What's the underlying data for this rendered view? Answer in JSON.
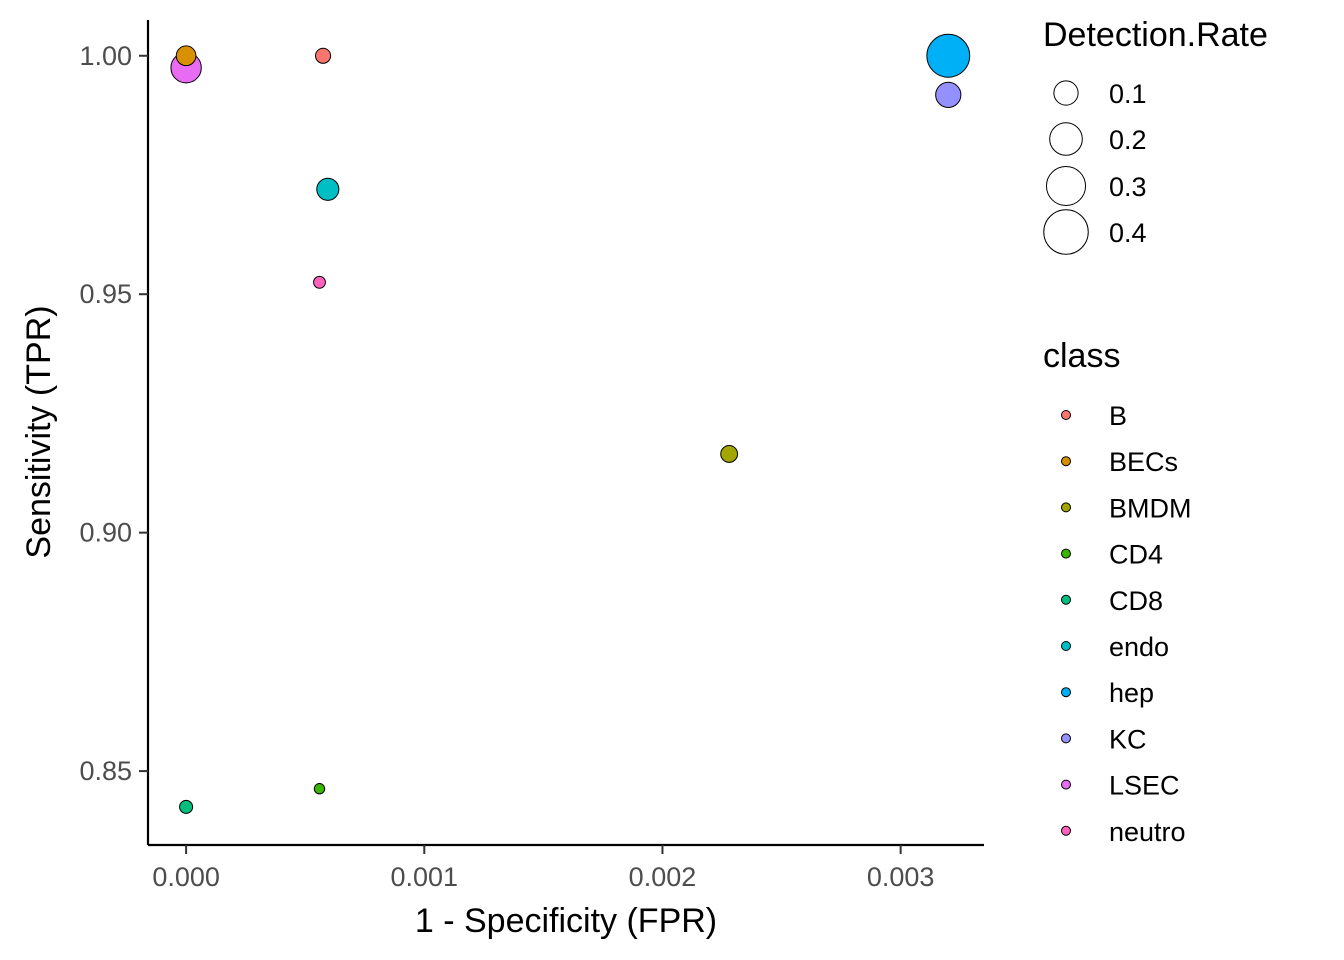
{
  "chart_data": {
    "type": "scatter",
    "xlabel": "1 - Specificity (FPR)",
    "ylabel": "Sensitivity (TPR)",
    "xlim": [
      -0.00016,
      0.00335
    ],
    "ylim": [
      0.8345,
      1.0075
    ],
    "x_ticks": [
      0.0,
      0.001,
      0.002,
      0.003
    ],
    "x_tick_labels": [
      "0.000",
      "0.001",
      "0.002",
      "0.003"
    ],
    "y_ticks": [
      0.85,
      0.9,
      0.95,
      1.0
    ],
    "y_tick_labels": [
      "0.85",
      "0.90",
      "0.95",
      "1.00"
    ],
    "grid": false,
    "legend_placement": "right",
    "size_legend": {
      "title": "Detection.Rate",
      "values": [
        0.1,
        0.2,
        0.3,
        0.4
      ],
      "labels": [
        "0.1",
        "0.2",
        "0.3",
        "0.4"
      ]
    },
    "color_legend": {
      "title": "class",
      "classes": [
        "B",
        "BECs",
        "BMDM",
        "CD4",
        "CD8",
        "endo",
        "hep",
        "KC",
        "LSEC",
        "neutro"
      ],
      "colors": [
        "#F8766D",
        "#D89000",
        "#A3A500",
        "#39B600",
        "#00BF7D",
        "#00BFC4",
        "#00B0F6",
        "#9590FF",
        "#E76BF3",
        "#FF62BC"
      ]
    },
    "points": [
      {
        "class": "B",
        "x": 0.000575,
        "y": 1.0,
        "detection_rate": 0.03
      },
      {
        "class": "BECs",
        "x": 0.0,
        "y": 1.0,
        "detection_rate": 0.06
      },
      {
        "class": "BMDM",
        "x": 0.00228,
        "y": 0.9165,
        "detection_rate": 0.04
      },
      {
        "class": "CD4",
        "x": 0.00056,
        "y": 0.8463,
        "detection_rate": 0.01
      },
      {
        "class": "CD8",
        "x": 0.0,
        "y": 0.8425,
        "detection_rate": 0.02
      },
      {
        "class": "endo",
        "x": 0.000595,
        "y": 0.972,
        "detection_rate": 0.08
      },
      {
        "class": "hep",
        "x": 0.0032,
        "y": 1.0,
        "detection_rate": 0.37
      },
      {
        "class": "KC",
        "x": 0.0032,
        "y": 0.9918,
        "detection_rate": 0.11
      },
      {
        "class": "LSEC",
        "x": 0.0,
        "y": 0.9975,
        "detection_rate": 0.17
      },
      {
        "class": "neutro",
        "x": 0.00056,
        "y": 0.9525,
        "detection_rate": 0.015
      }
    ]
  }
}
